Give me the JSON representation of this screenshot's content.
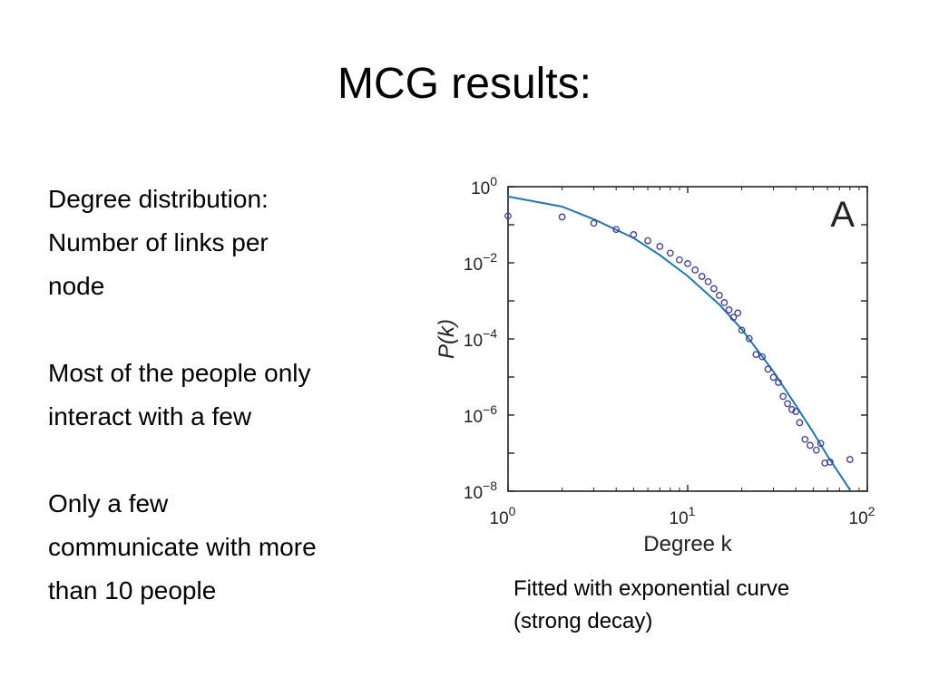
{
  "slide": {
    "title": "MCG results:",
    "bullets": [
      {
        "line1": "Degree distribution:",
        "line2": "Number of links per",
        "line3": "node"
      },
      {
        "line1": "Most of the people only",
        "line2": "interact with a few"
      },
      {
        "line1": "Only a few",
        "line2": "communicate with more",
        "line3": "than 10 people"
      }
    ],
    "caption_line1": "Fitted with exponential curve",
    "caption_line2": "(strong decay)"
  },
  "chart_data": {
    "type": "scatter",
    "panel_label": "A",
    "xlabel": "Degree k",
    "ylabel": "P(k)",
    "x_scale": "log",
    "y_scale": "log",
    "xlim": [
      1,
      100
    ],
    "ylim": [
      1e-08,
      1
    ],
    "x_ticks": [
      {
        "base": "10",
        "exp": "0",
        "value": 1
      },
      {
        "base": "10",
        "exp": "1",
        "value": 10
      },
      {
        "base": "10",
        "exp": "2",
        "value": 100
      }
    ],
    "y_ticks": [
      {
        "base": "10",
        "exp": "0",
        "value": 1
      },
      {
        "base": "10",
        "exp": "−2",
        "value": 0.01
      },
      {
        "base": "10",
        "exp": "−4",
        "value": 0.0001
      },
      {
        "base": "10",
        "exp": "−6",
        "value": 1e-06
      },
      {
        "base": "10",
        "exp": "−8",
        "value": 1e-08
      }
    ],
    "grid": false,
    "marker_color": "#3a3a9e",
    "fit_color": "#1f77b4",
    "series": [
      {
        "kind": "points",
        "points": [
          [
            1,
            0.17
          ],
          [
            2,
            0.16
          ],
          [
            3,
            0.11
          ],
          [
            4,
            0.075
          ],
          [
            5,
            0.055
          ],
          [
            6,
            0.038
          ],
          [
            7,
            0.027
          ],
          [
            8,
            0.018
          ],
          [
            9,
            0.012
          ],
          [
            10,
            0.0095
          ],
          [
            11,
            0.0065
          ],
          [
            12,
            0.0044
          ],
          [
            13,
            0.0032
          ],
          [
            14,
            0.0021
          ],
          [
            15,
            0.0014
          ],
          [
            16,
            0.0009
          ],
          [
            17,
            0.00058
          ],
          [
            18,
            0.00037
          ],
          [
            19,
            0.00048
          ],
          [
            20,
            0.00017
          ],
          [
            22,
            0.000102
          ],
          [
            24,
            3.9e-05
          ],
          [
            26,
            3.4e-05
          ],
          [
            28,
            1.6e-05
          ],
          [
            30,
            9.8e-06
          ],
          [
            32,
            7.2e-06
          ],
          [
            34,
            3.1e-06
          ],
          [
            36,
            2e-06
          ],
          [
            38,
            1.4e-06
          ],
          [
            40,
            1.24e-06
          ],
          [
            42,
            6.3e-07
          ],
          [
            45,
            2.3e-07
          ],
          [
            48,
            1.6e-07
          ],
          [
            52,
            1.2e-07
          ],
          [
            55,
            1.8e-07
          ],
          [
            58,
            5.5e-08
          ],
          [
            62,
            5.8e-08
          ],
          [
            80,
            6.8e-08
          ]
        ]
      },
      {
        "kind": "fit",
        "points": [
          [
            1,
            0.55
          ],
          [
            2,
            0.3
          ],
          [
            3,
            0.14
          ],
          [
            5,
            0.045
          ],
          [
            7,
            0.016
          ],
          [
            10,
            0.0045
          ],
          [
            15,
            0.0008
          ],
          [
            20,
            0.00018
          ],
          [
            30,
            1.4e-05
          ],
          [
            40,
            1.8e-06
          ],
          [
            50,
            3.5e-07
          ],
          [
            60,
            8.5e-08
          ],
          [
            80,
            1.1e-08
          ]
        ]
      }
    ]
  }
}
